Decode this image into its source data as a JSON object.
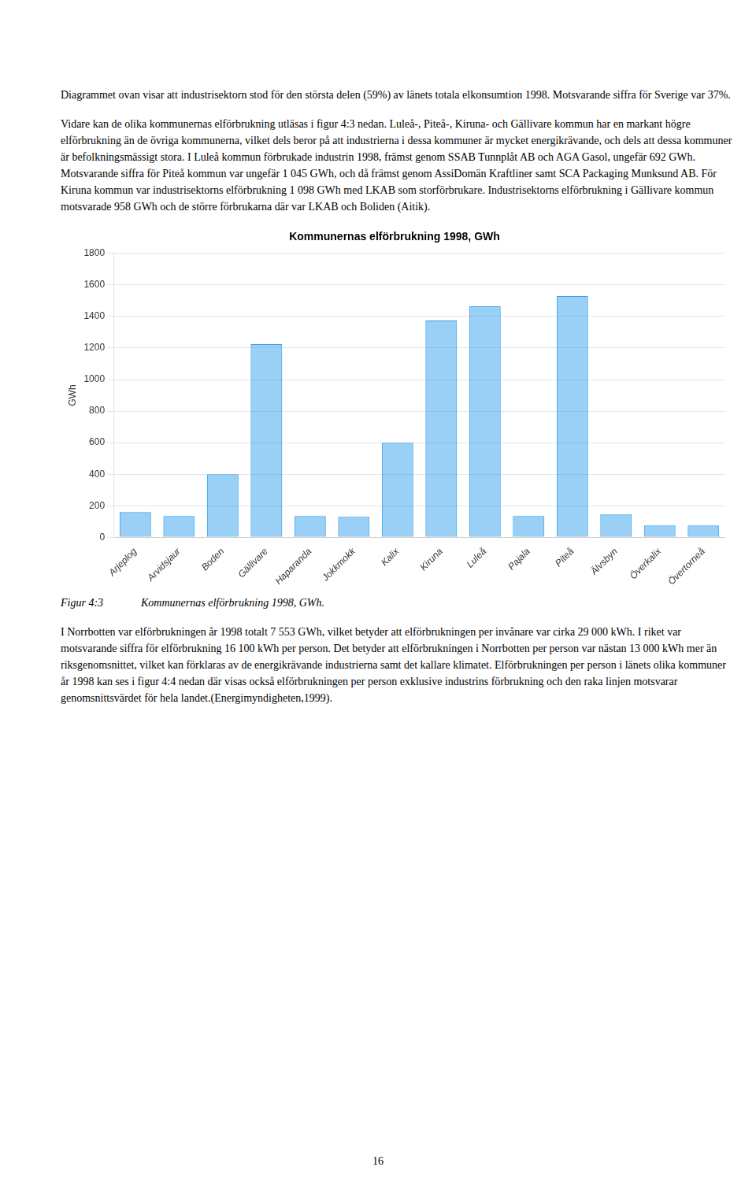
{
  "text_above": [
    "Diagrammet ovan visar att industrisektorn stod för den största delen (59%) av länets totala elkonsumtion 1998. Motsvarande siffra för Sverige var 37%.",
    "Vidare kan de olika kommunernas elförbrukning utläsas i figur 4:3 nedan. Luleå-, Piteå-, Kiruna- och Gällivare kommun har en markant högre elförbrukning än de övriga kommunerna, vilket dels beror på att industrierna i dessa kommuner är mycket energikrävande, och dels att dessa kommuner är befolkningsmässigt stora. I Luleå kommun förbrukade industrin 1998, främst genom SSAB Tunnplåt AB och AGA Gasol, ungefär 692 GWh. Motsvarande siffra för Piteå kommun var ungefär 1 045 GWh, och då främst genom AssiDomän Kraftliner samt SCA Packaging Munksund AB. För Kiruna kommun var industrisektorns elförbrukning 1 098 GWh med LKAB som storförbrukare. Industrisektorns elförbrukning i Gällivare kommun motsvarade 958 GWh och de större förbrukarna där var LKAB och Boliden (Aitik)."
  ],
  "caption_label": "Figur 4:3",
  "caption_text": "Kommunernas elförbrukning 1998, GWh.",
  "text_below": "I Norrbotten var elförbrukningen år 1998 totalt 7 553 GWh, vilket betyder att elförbrukningen per invånare var cirka 29 000 kWh. I riket var motsvarande siffra för elförbrukning 16 100 kWh per person. Det betyder att elförbrukningen i Norrbotten per person var nästan 13 000 kWh mer än riksgenomsnittet, vilket kan förklaras av de energikrävande industrierna samt det kallare klimatet. Elförbrukningen per person i länets olika kommuner år 1998 kan ses i figur 4:4 nedan där visas också elförbrukningen per person exklusive industrins förbrukning och den raka linjen motsvarar genomsnittsvärdet för hela landet.(Energimyndigheten,1999).",
  "page_number": "16",
  "chart_data": {
    "type": "bar",
    "title": "Kommunernas elförbrukning 1998, GWh",
    "ylabel": "GWh",
    "categories": [
      "Arjeplog",
      "Arvidsjaur",
      "Boden",
      "Gällivare",
      "Haparanda",
      "Jokkmokk",
      "Kalix",
      "Kiruna",
      "Luleå",
      "Pajala",
      "Piteå",
      "Älvsbyn",
      "Överkalix",
      "Övertorneå"
    ],
    "values": [
      160,
      135,
      400,
      1225,
      135,
      130,
      600,
      1375,
      1465,
      135,
      1530,
      145,
      75,
      75
    ],
    "ylim": [
      0,
      1800
    ],
    "yticks": [
      0,
      200,
      400,
      600,
      800,
      1000,
      1200,
      1400,
      1600,
      1800
    ],
    "grid": true
  }
}
